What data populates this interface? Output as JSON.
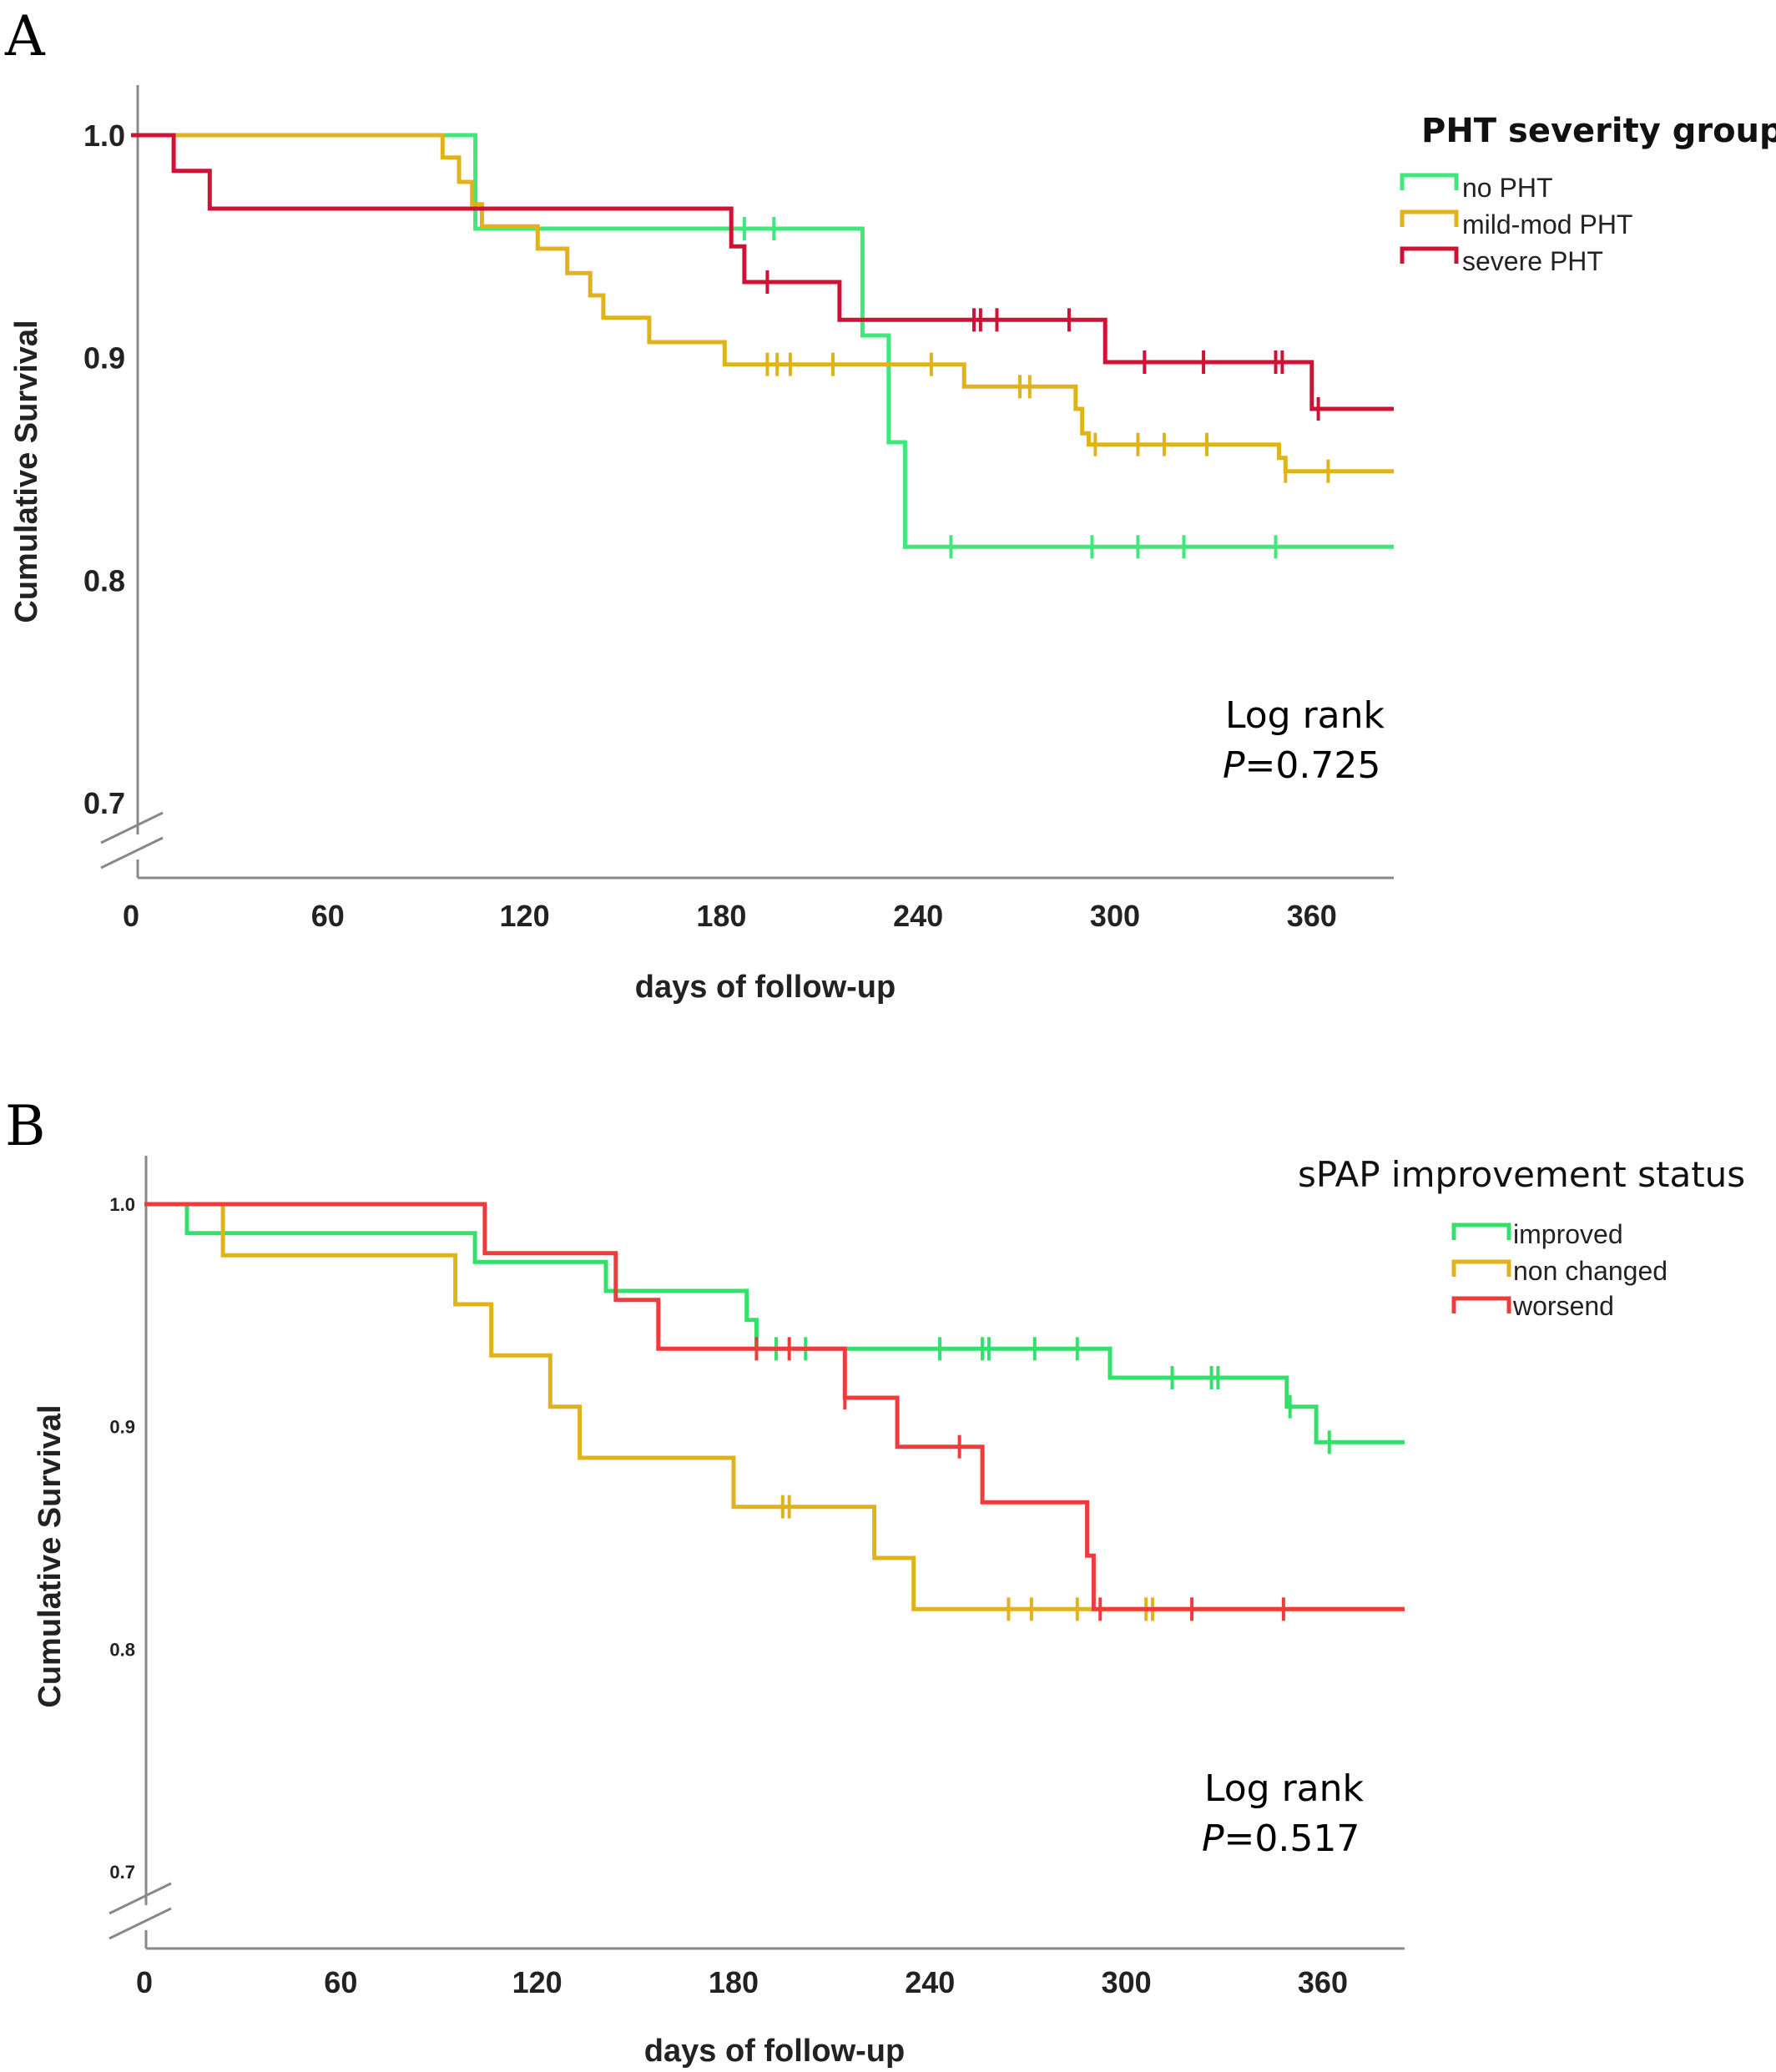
{
  "chart_data": [
    {
      "panel": "A",
      "type": "line",
      "step": true,
      "xlabel": "days of follow-up",
      "ylabel": "Cumulative Survival",
      "xlim": [
        0,
        385
      ],
      "ylim": [
        0.7,
        1.0
      ],
      "xticks": [
        "0",
        "60",
        "120",
        "180",
        "240",
        "300",
        "360"
      ],
      "xtick_values": [
        0,
        60,
        120,
        180,
        240,
        300,
        360
      ],
      "yticks": [
        "0.7",
        "0.8",
        "0.9",
        "1.0"
      ],
      "ytick_values": [
        0.7,
        0.8,
        0.9,
        1.0
      ],
      "axis_break": true,
      "grid": false,
      "legend": {
        "title": "PHT severity groups",
        "position": "top-right"
      },
      "annotation": {
        "line1": "Log rank",
        "p_symbol": "P",
        "p_value": "=0.725"
      },
      "series": [
        {
          "name": "no PHT",
          "color": "#3ee87a",
          "points": [
            [
              0,
              1.0
            ],
            [
              105,
              1.0
            ],
            [
              105,
              0.958
            ],
            [
              223,
              0.958
            ],
            [
              223,
              0.91
            ],
            [
              231,
              0.91
            ],
            [
              231,
              0.862
            ],
            [
              236,
              0.862
            ],
            [
              236,
              0.815
            ],
            [
              385,
              0.815
            ]
          ],
          "censored": [
            [
              187,
              0.958
            ],
            [
              196,
              0.958
            ],
            [
              250,
              0.815
            ],
            [
              293,
              0.815
            ],
            [
              307,
              0.815
            ],
            [
              321,
              0.815
            ],
            [
              349,
              0.815
            ]
          ]
        },
        {
          "name": "mild-mod PHT",
          "color": "#e0b21c",
          "points": [
            [
              0,
              1.0
            ],
            [
              95,
              1.0
            ],
            [
              95,
              0.99
            ],
            [
              100,
              0.99
            ],
            [
              100,
              0.979
            ],
            [
              104,
              0.979
            ],
            [
              104,
              0.969
            ],
            [
              107,
              0.969
            ],
            [
              107,
              0.959
            ],
            [
              124,
              0.959
            ],
            [
              124,
              0.949
            ],
            [
              133,
              0.949
            ],
            [
              133,
              0.938
            ],
            [
              140,
              0.938
            ],
            [
              140,
              0.928
            ],
            [
              144,
              0.928
            ],
            [
              144,
              0.918
            ],
            [
              158,
              0.918
            ],
            [
              158,
              0.907
            ],
            [
              181,
              0.907
            ],
            [
              181,
              0.897
            ],
            [
              254,
              0.897
            ],
            [
              254,
              0.887
            ],
            [
              288,
              0.887
            ],
            [
              288,
              0.877
            ],
            [
              290,
              0.877
            ],
            [
              290,
              0.866
            ],
            [
              292,
              0.866
            ],
            [
              292,
              0.861
            ],
            [
              350,
              0.861
            ],
            [
              350,
              0.855
            ],
            [
              352,
              0.855
            ],
            [
              352,
              0.849
            ],
            [
              385,
              0.849
            ]
          ],
          "censored": [
            [
              194,
              0.897
            ],
            [
              197,
              0.897
            ],
            [
              201,
              0.897
            ],
            [
              214,
              0.897
            ],
            [
              244,
              0.897
            ],
            [
              271,
              0.887
            ],
            [
              274,
              0.887
            ],
            [
              294,
              0.861
            ],
            [
              307,
              0.861
            ],
            [
              315,
              0.861
            ],
            [
              328,
              0.861
            ],
            [
              352,
              0.849
            ],
            [
              365,
              0.849
            ]
          ]
        },
        {
          "name": "severe PHT",
          "color": "#cc1336",
          "points": [
            [
              0,
              1.0
            ],
            [
              13,
              1.0
            ],
            [
              13,
              0.984
            ],
            [
              24,
              0.984
            ],
            [
              24,
              0.967
            ],
            [
              183,
              0.967
            ],
            [
              183,
              0.95
            ],
            [
              187,
              0.95
            ],
            [
              187,
              0.934
            ],
            [
              216,
              0.934
            ],
            [
              216,
              0.917
            ],
            [
              297,
              0.917
            ],
            [
              297,
              0.898
            ],
            [
              360,
              0.898
            ],
            [
              360,
              0.877
            ],
            [
              385,
              0.877
            ]
          ],
          "censored": [
            [
              194,
              0.934
            ],
            [
              257,
              0.917
            ],
            [
              259,
              0.917
            ],
            [
              264,
              0.917
            ],
            [
              286,
              0.917
            ],
            [
              309,
              0.898
            ],
            [
              327,
              0.898
            ],
            [
              349,
              0.898
            ],
            [
              351,
              0.898
            ],
            [
              362,
              0.877
            ]
          ]
        }
      ]
    },
    {
      "panel": "B",
      "type": "line",
      "step": true,
      "xlabel": "days of follow-up",
      "ylabel": "Cumulative Survival",
      "xlim": [
        0,
        385
      ],
      "ylim": [
        0.7,
        1.0
      ],
      "xticks": [
        "0",
        "60",
        "120",
        "180",
        "240",
        "300",
        "360"
      ],
      "xtick_values": [
        0,
        60,
        120,
        180,
        240,
        300,
        360
      ],
      "yticks": [
        "0.7",
        "0.8",
        "0.9",
        "1.0"
      ],
      "ytick_values": [
        0.7,
        0.8,
        0.9,
        1.0
      ],
      "axis_break": true,
      "grid": false,
      "legend": {
        "title": "sPAP improvement status",
        "position": "top-right"
      },
      "annotation": {
        "line1": "Log rank",
        "p_symbol": "P",
        "p_value": "=0.517"
      },
      "series": [
        {
          "name": "improved",
          "color": "#33e06b",
          "points": [
            [
              0,
              1.0
            ],
            [
              13,
              1.0
            ],
            [
              13,
              0.987
            ],
            [
              101,
              0.987
            ],
            [
              101,
              0.974
            ],
            [
              141,
              0.974
            ],
            [
              141,
              0.961
            ],
            [
              184,
              0.961
            ],
            [
              184,
              0.948
            ],
            [
              187,
              0.948
            ],
            [
              187,
              0.935
            ],
            [
              295,
              0.935
            ],
            [
              295,
              0.922
            ],
            [
              349,
              0.922
            ],
            [
              349,
              0.909
            ],
            [
              358,
              0.909
            ],
            [
              358,
              0.893
            ],
            [
              385,
              0.893
            ]
          ],
          "censored": [
            [
              193,
              0.935
            ],
            [
              202,
              0.935
            ],
            [
              243,
              0.935
            ],
            [
              256,
              0.935
            ],
            [
              258,
              0.935
            ],
            [
              272,
              0.935
            ],
            [
              285,
              0.935
            ],
            [
              314,
              0.922
            ],
            [
              326,
              0.922
            ],
            [
              328,
              0.922
            ],
            [
              350,
              0.909
            ],
            [
              362,
              0.893
            ]
          ]
        },
        {
          "name": "non changed",
          "color": "#e0b21c",
          "points": [
            [
              0,
              1.0
            ],
            [
              24,
              1.0
            ],
            [
              24,
              0.977
            ],
            [
              95,
              0.977
            ],
            [
              95,
              0.955
            ],
            [
              106,
              0.955
            ],
            [
              106,
              0.932
            ],
            [
              124,
              0.932
            ],
            [
              124,
              0.909
            ],
            [
              133,
              0.909
            ],
            [
              133,
              0.886
            ],
            [
              180,
              0.886
            ],
            [
              180,
              0.864
            ],
            [
              223,
              0.864
            ],
            [
              223,
              0.841
            ],
            [
              235,
              0.841
            ],
            [
              235,
              0.818
            ],
            [
              385,
              0.818
            ]
          ],
          "censored": [
            [
              195,
              0.864
            ],
            [
              197,
              0.864
            ],
            [
              264,
              0.818
            ],
            [
              271,
              0.818
            ],
            [
              285,
              0.818
            ],
            [
              306,
              0.818
            ],
            [
              308,
              0.818
            ]
          ]
        },
        {
          "name": "worsend",
          "color": "#ee3b3b",
          "points": [
            [
              0,
              1.0
            ],
            [
              104,
              1.0
            ],
            [
              104,
              0.978
            ],
            [
              144,
              0.978
            ],
            [
              144,
              0.957
            ],
            [
              157,
              0.957
            ],
            [
              157,
              0.935
            ],
            [
              214,
              0.935
            ],
            [
              214,
              0.913
            ],
            [
              230,
              0.913
            ],
            [
              230,
              0.891
            ],
            [
              256,
              0.891
            ],
            [
              256,
              0.866
            ],
            [
              288,
              0.866
            ],
            [
              288,
              0.842
            ],
            [
              290,
              0.842
            ],
            [
              290,
              0.818
            ],
            [
              385,
              0.818
            ]
          ],
          "censored": [
            [
              187,
              0.935
            ],
            [
              197,
              0.935
            ],
            [
              214,
              0.913
            ],
            [
              249,
              0.891
            ],
            [
              292,
              0.818
            ],
            [
              320,
              0.818
            ],
            [
              348,
              0.818
            ]
          ]
        }
      ]
    }
  ]
}
